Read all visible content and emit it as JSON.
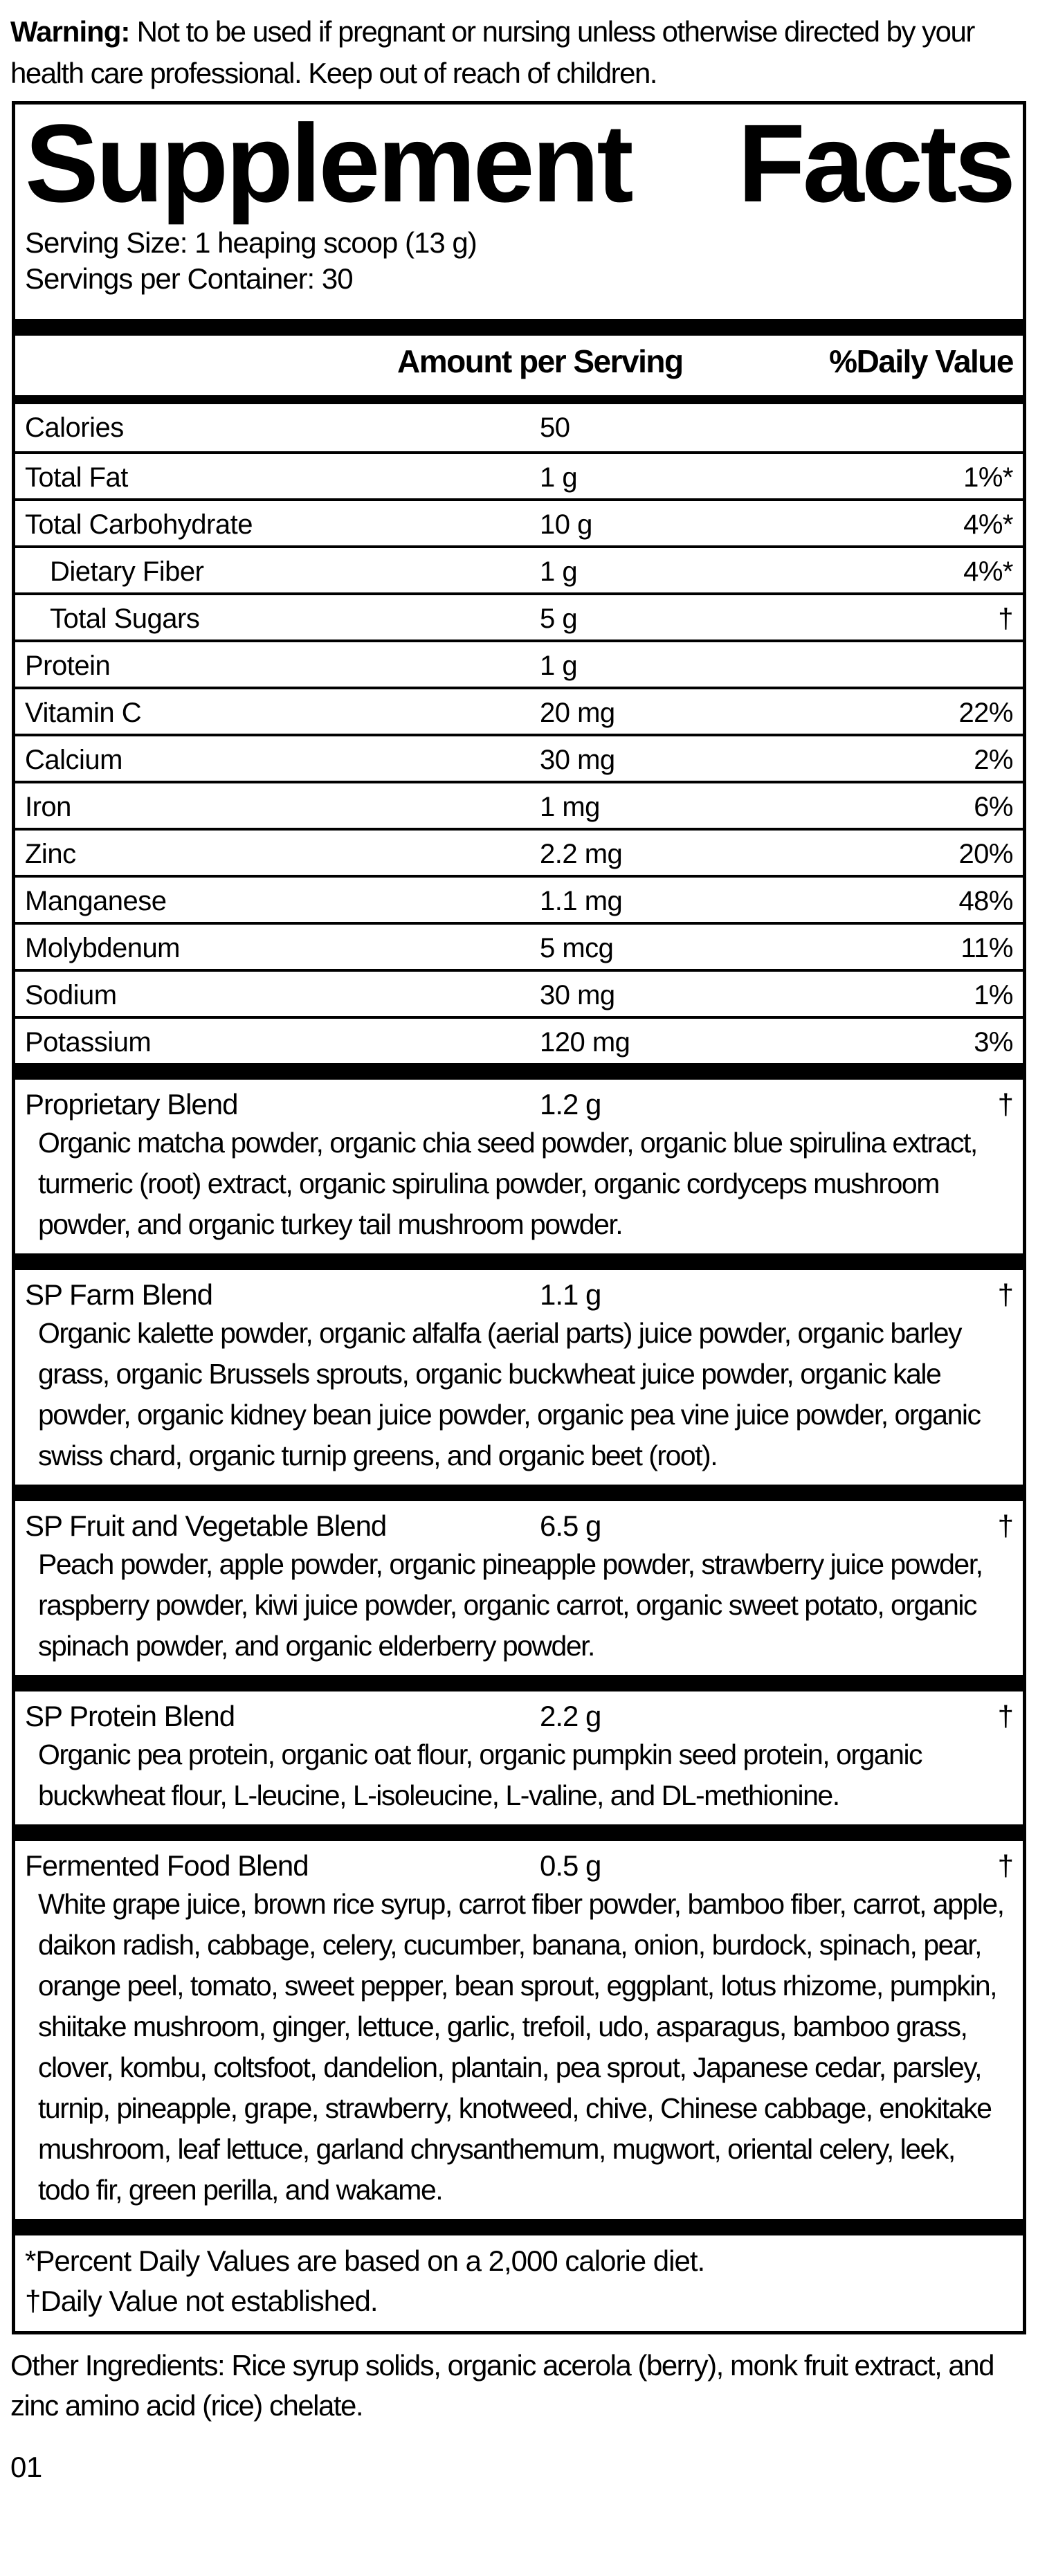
{
  "colors": {
    "ink": "#000000",
    "paper": "#ffffff"
  },
  "warning": {
    "label": "Warning:",
    "text": "Not to be used if pregnant or nursing unless otherwise directed by your health care professional. Keep out of reach of children."
  },
  "panel": {
    "title_word1": "Supplement",
    "title_word2": "Facts",
    "serving_size": "Serving Size: 1 heaping scoop (13 g)",
    "servings_per_container": "Servings per Container: 30",
    "columns": {
      "amount": "Amount per Serving",
      "daily_value": "%Daily Value"
    },
    "nutrients": [
      {
        "name": "Calories",
        "amount": "50",
        "dv": "",
        "indent": false
      },
      {
        "name": "Total Fat",
        "amount": "1 g",
        "dv": "1%*",
        "indent": false
      },
      {
        "name": "Total Carbohydrate",
        "amount": "10 g",
        "dv": "4%*",
        "indent": false
      },
      {
        "name": "Dietary Fiber",
        "amount": "1 g",
        "dv": "4%*",
        "indent": true
      },
      {
        "name": "Total Sugars",
        "amount": "5 g",
        "dv": "†",
        "indent": true
      },
      {
        "name": "Protein",
        "amount": "1 g",
        "dv": "",
        "indent": false
      },
      {
        "name": "Vitamin C",
        "amount": "20 mg",
        "dv": "22%",
        "indent": false
      },
      {
        "name": "Calcium",
        "amount": "30 mg",
        "dv": "2%",
        "indent": false
      },
      {
        "name": "Iron",
        "amount": "1 mg",
        "dv": "6%",
        "indent": false
      },
      {
        "name": "Zinc",
        "amount": "2.2 mg",
        "dv": "20%",
        "indent": false
      },
      {
        "name": "Manganese",
        "amount": "1.1 mg",
        "dv": "48%",
        "indent": false
      },
      {
        "name": "Molybdenum",
        "amount": "5 mcg",
        "dv": "11%",
        "indent": false
      },
      {
        "name": "Sodium",
        "amount": "30 mg",
        "dv": "1%",
        "indent": false
      },
      {
        "name": "Potassium",
        "amount": "120 mg",
        "dv": "3%",
        "indent": false
      }
    ],
    "blends": [
      {
        "name": "Proprietary Blend",
        "amount": "1.2 g",
        "dv": "†",
        "description": "Organic matcha powder, organic chia seed powder, organic blue spirulina extract, turmeric (root) extract, organic spirulina powder, organic cordyceps mushroom powder, and organic turkey tail mushroom powder."
      },
      {
        "name": "SP Farm Blend",
        "amount": "1.1 g",
        "dv": "†",
        "description": "Organic kalette powder, organic alfalfa (aerial parts) juice powder, organic barley grass, organic Brussels sprouts, organic buckwheat juice powder, organic kale powder, organic kidney bean juice powder, organic pea vine juice powder, organic swiss chard, organic turnip greens, and organic beet (root)."
      },
      {
        "name": "SP Fruit and Vegetable Blend",
        "amount": "6.5 g",
        "dv": "†",
        "description": "Peach powder, apple powder, organic pineapple powder, strawberry juice powder, raspberry powder, kiwi juice powder, organic carrot, organic sweet potato, organic spinach powder, and organic elderberry powder."
      },
      {
        "name": "SP Protein Blend",
        "amount": "2.2 g",
        "dv": "†",
        "description": "Organic pea protein, organic oat flour, organic pumpkin seed protein, organic buckwheat flour, L-leucine, L-isoleucine, L-valine, and DL-methionine."
      },
      {
        "name": "Fermented Food Blend",
        "amount": "0.5 g",
        "dv": "†",
        "description": "White grape juice, brown rice syrup, carrot fiber powder, bamboo fiber, carrot, apple, daikon radish, cabbage, celery, cucumber, banana, onion, burdock, spinach, pear, orange peel, tomato, sweet pepper, bean sprout, eggplant, lotus rhizome, pumpkin, shiitake mushroom, ginger, lettuce, garlic, trefoil, udo, asparagus, bamboo grass, clover, kombu, coltsfoot, dandelion, plantain, pea sprout, Japanese cedar, parsley, turnip, pineapple, grape, strawberry, knotweed, chive, Chinese cabbage, enokitake mushroom, leaf lettuce, garland chrysanthemum, mugwort, oriental celery, leek, todo fir, green perilla, and wakame."
      }
    ],
    "footnotes": [
      "*Percent Daily Values are based on a 2,000 calorie diet.",
      "†Daily Value not established."
    ]
  },
  "other_ingredients": "Other Ingredients: Rice syrup solids, organic acerola (berry), monk fruit extract, and zinc amino acid (rice) chelate.",
  "page_code": "01"
}
